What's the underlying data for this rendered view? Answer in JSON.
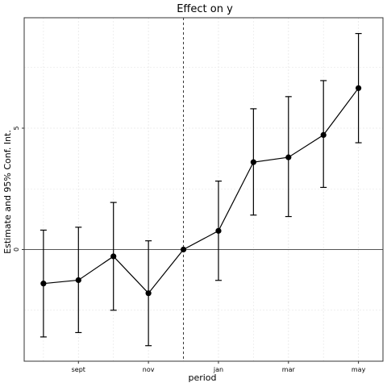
{
  "chart_data": {
    "type": "scatter",
    "title": "Effect on y",
    "xlabel": "period",
    "ylabel": "Estimate and 95% Conf. Int.",
    "x": [
      1,
      2,
      3,
      4,
      5,
      6,
      7,
      8,
      9,
      10
    ],
    "series": [
      {
        "values": [
          -1.4,
          -1.26,
          -0.28,
          -1.8,
          0,
          0.77,
          3.6,
          3.8,
          4.72,
          6.65
        ],
        "ci_low": [
          -3.6,
          -3.42,
          -2.5,
          -3.96,
          0,
          -1.27,
          1.42,
          1.36,
          2.56,
          4.4
        ],
        "ci_high": [
          0.8,
          0.92,
          1.94,
          0.36,
          0,
          2.82,
          5.8,
          6.3,
          6.96,
          8.9
        ]
      }
    ],
    "x_ticks": [
      {
        "value": 2,
        "label": "sept"
      },
      {
        "value": 4,
        "label": "nov"
      },
      {
        "value": 6,
        "label": "jan"
      },
      {
        "value": 8,
        "label": "mar"
      },
      {
        "value": 10,
        "label": "may"
      }
    ],
    "y_ticks": [
      {
        "value": 0,
        "label": "0"
      },
      {
        "value": 5,
        "label": "5"
      }
    ],
    "xlim": [
      0.45,
      10.7
    ],
    "ylim": [
      -4.6,
      9.55
    ],
    "reference_hline": 0,
    "reference_vline": 5,
    "grid": true,
    "colors": {
      "line": "#000000",
      "grid": "#e6e6e6",
      "frame": "#333333"
    }
  }
}
